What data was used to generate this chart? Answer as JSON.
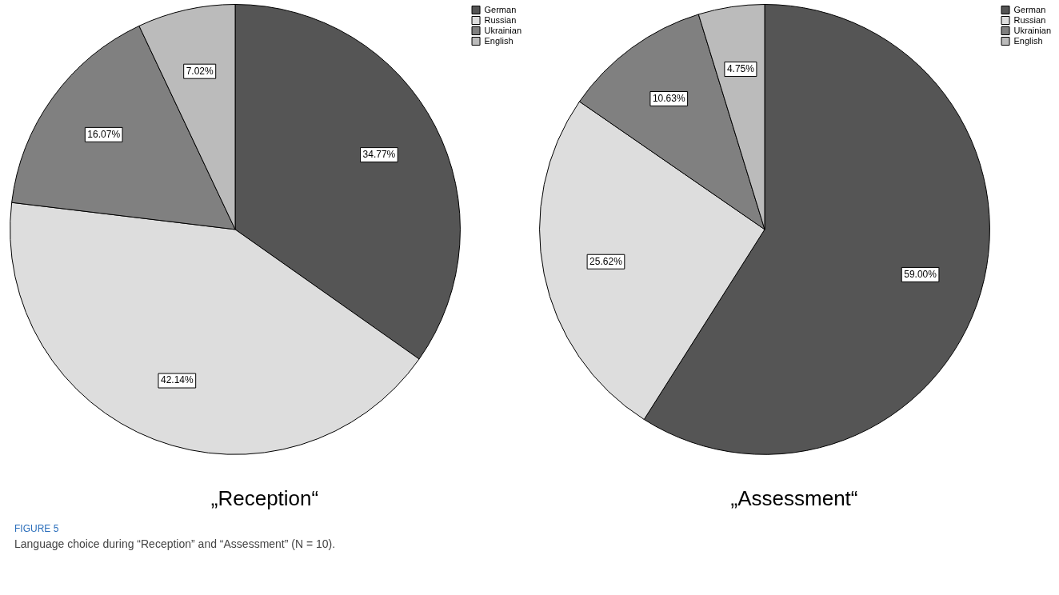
{
  "chart_data": [
    {
      "type": "pie",
      "title": "„Reception“",
      "categories": [
        "German",
        "Russian",
        "Ukrainian",
        "English"
      ],
      "values": [
        34.77,
        42.14,
        16.07,
        7.02
      ],
      "colors": [
        "#555555",
        "#dddddd",
        "#808080",
        "#bbbbbb"
      ],
      "value_labels": [
        "34.77%",
        "42.14%",
        "16.07%",
        "7.02%"
      ],
      "legend": "top right",
      "annotations": [
        "FIGURE 5",
        "Language choice during “Reception” and “Assessment” (N = 10)."
      ]
    },
    {
      "type": "pie",
      "title": "„Assessment“",
      "categories": [
        "German",
        "Russian",
        "Ukrainian",
        "English"
      ],
      "values": [
        59.0,
        25.62,
        10.63,
        4.75
      ],
      "colors": [
        "#555555",
        "#dddddd",
        "#808080",
        "#bbbbbb"
      ],
      "value_labels": [
        "59.00%",
        "25.62%",
        "10.63%",
        "4.75%"
      ],
      "legend": "top right"
    }
  ]
}
